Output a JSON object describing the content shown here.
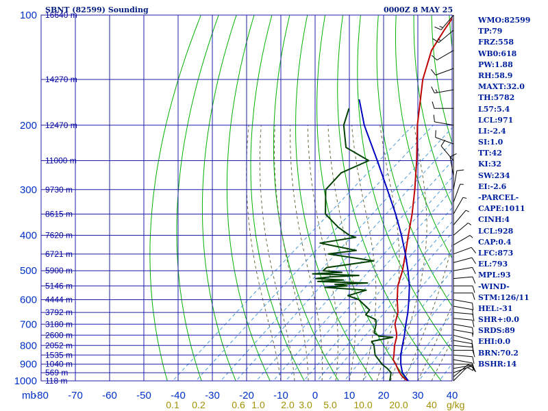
{
  "header": {
    "station": "SBNT (82599) Sounding",
    "datetime": "0000Z  8 MAY 25"
  },
  "indices": [
    "WMO:82599",
    "TP:79",
    "FRZ:558",
    "WB0:618",
    "PW:1.88",
    "RH:58.9",
    "MAXT:32.0",
    "TH:5782",
    "L57:5.4",
    "LCL:971",
    "LI:-2.4",
    "SI:1.0",
    "TT:42",
    "KI:32",
    "SW:234",
    "EI:-2.6",
    "-PARCEL-",
    "CAPE:1011",
    "CINH:4",
    "LCL:928",
    "CAP:0.4",
    "LFC:873",
    "EL:793",
    "MPL:93",
    "-WIND-",
    "STM:126/11",
    "HEL:-31",
    "SHR+:0.0",
    "SRDS:89",
    "EHI:0.0",
    "BRN:70.2",
    "BSHR:14"
  ],
  "colors": {
    "grid": "#1c1ca8",
    "dry_adiabat": "#00b000",
    "moist_adiabat": "#6a6a40",
    "mixing_ratio": "#4a9ad8",
    "temperature": "#c00000",
    "dewpoint": "#004000",
    "parcel": "#0000c0",
    "axis_text": "#0030c8",
    "mixing_text": "#a09000"
  },
  "chart_data": {
    "type": "line",
    "title": "SBNT (82599) Sounding",
    "xlabel": "",
    "ylabel": "",
    "pressure_unit_label": "mb",
    "mixing_ratio_unit_label": "g/kg",
    "xlim": [
      -80,
      40
    ],
    "ylim": [
      1000,
      100
    ],
    "temperature_ticks": [
      "-80",
      "-70",
      "-60",
      "-50",
      "-40",
      "-30",
      "-20",
      "-10",
      "0",
      "10",
      "20",
      "30",
      "40"
    ],
    "pressure_ticks": [
      {
        "p": 100,
        "label": "100"
      },
      {
        "p": 200,
        "label": "200"
      },
      {
        "p": 300,
        "label": "300"
      },
      {
        "p": 400,
        "label": "400"
      },
      {
        "p": 500,
        "label": "500"
      },
      {
        "p": 600,
        "label": "600"
      },
      {
        "p": 700,
        "label": "700"
      },
      {
        "p": 800,
        "label": "800"
      },
      {
        "p": 900,
        "label": "900"
      },
      {
        "p": 1000,
        "label": "1000"
      }
    ],
    "height_labels": [
      {
        "p": 100,
        "label": "16640 m"
      },
      {
        "p": 150,
        "label": "14270 m"
      },
      {
        "p": 200,
        "label": "12470 m"
      },
      {
        "p": 250,
        "label": "11000 m"
      },
      {
        "p": 300,
        "label": "9730 m"
      },
      {
        "p": 350,
        "label": "8615 m"
      },
      {
        "p": 400,
        "label": "7620 m"
      },
      {
        "p": 450,
        "label": "6721 m"
      },
      {
        "p": 500,
        "label": "5900 m"
      },
      {
        "p": 550,
        "label": "5146 m"
      },
      {
        "p": 600,
        "label": "4444 m"
      },
      {
        "p": 650,
        "label": "3792 m"
      },
      {
        "p": 700,
        "label": "3180 m"
      },
      {
        "p": 750,
        "label": "2600 m"
      },
      {
        "p": 800,
        "label": "2052 m"
      },
      {
        "p": 850,
        "label": "1535 m"
      },
      {
        "p": 900,
        "label": "1040 m"
      },
      {
        "p": 950,
        "label": "569 m"
      },
      {
        "p": 1000,
        "label": "118 m"
      }
    ],
    "mixing_ratio_labels": [
      "0.1",
      "0.2",
      "0.6",
      "1.0",
      "2.0",
      "3.0",
      "5.0",
      "10.0",
      "20.0",
      "40"
    ],
    "series": [
      {
        "key": "temperature",
        "points": [
          [
            1007,
            27.8
          ],
          [
            1000,
            27
          ],
          [
            975,
            24.2
          ],
          [
            950,
            22
          ],
          [
            925,
            20
          ],
          [
            900,
            18
          ],
          [
            875,
            15.8
          ],
          [
            850,
            14.5
          ],
          [
            800,
            11.5
          ],
          [
            760,
            9.4
          ],
          [
            740,
            8
          ],
          [
            700,
            4.6
          ],
          [
            650,
            1.6
          ],
          [
            600,
            -2.8
          ],
          [
            550,
            -7.2
          ],
          [
            500,
            -10.8
          ],
          [
            450,
            -15.5
          ],
          [
            400,
            -20.8
          ],
          [
            350,
            -26.7
          ],
          [
            300,
            -34
          ],
          [
            250,
            -43
          ],
          [
            200,
            -54.5
          ],
          [
            150,
            -68
          ],
          [
            125,
            -75
          ],
          [
            110,
            -78
          ],
          [
            100,
            -80
          ]
        ]
      },
      {
        "key": "dewpoint",
        "points": [
          [
            1007,
            22
          ],
          [
            1000,
            21.8
          ],
          [
            950,
            19.5
          ],
          [
            925,
            17
          ],
          [
            900,
            14
          ],
          [
            850,
            9
          ],
          [
            800,
            5.5
          ],
          [
            780,
            3.5
          ],
          [
            760,
            8.3
          ],
          [
            755,
            4
          ],
          [
            740,
            1.5
          ],
          [
            700,
            -0.9
          ],
          [
            680,
            -2.5
          ],
          [
            660,
            -7
          ],
          [
            640,
            -7.5
          ],
          [
            600,
            -14
          ],
          [
            585,
            -18.5
          ],
          [
            565,
            -15
          ],
          [
            555,
            -28
          ],
          [
            550,
            -22
          ],
          [
            545,
            -26
          ],
          [
            540,
            -17
          ],
          [
            535,
            -32
          ],
          [
            530,
            -25
          ],
          [
            525,
            -33.5
          ],
          [
            520,
            -30
          ],
          [
            515,
            -22
          ],
          [
            510,
            -36
          ],
          [
            505,
            -28
          ],
          [
            500,
            -34
          ],
          [
            490,
            -34
          ],
          [
            470,
            -22.5
          ],
          [
            460,
            -30
          ],
          [
            450,
            -38
          ],
          [
            440,
            -31
          ],
          [
            420,
            -44
          ],
          [
            405,
            -35.5
          ],
          [
            400,
            -38
          ],
          [
            380,
            -44
          ],
          [
            350,
            -52
          ],
          [
            300,
            -60
          ],
          [
            270,
            -61
          ],
          [
            250,
            -57
          ],
          [
            230,
            -68
          ],
          [
            200,
            -76
          ],
          [
            180,
            -80
          ]
        ]
      },
      {
        "key": "parcel",
        "points": [
          [
            1007,
            27.8
          ],
          [
            950,
            22.8
          ],
          [
            900,
            19.5
          ],
          [
            850,
            16.5
          ],
          [
            800,
            13.8
          ],
          [
            750,
            11
          ],
          [
            700,
            7.8
          ],
          [
            650,
            4.5
          ],
          [
            600,
            0.6
          ],
          [
            550,
            -3.8
          ],
          [
            500,
            -9.2
          ],
          [
            450,
            -15.5
          ],
          [
            400,
            -22.8
          ],
          [
            350,
            -31.5
          ],
          [
            300,
            -42
          ],
          [
            250,
            -54.5
          ],
          [
            200,
            -70
          ],
          [
            170,
            -80
          ]
        ]
      }
    ],
    "wind_barbs": [
      {
        "p": 1000,
        "dir": 45,
        "spd": 10
      },
      {
        "p": 975,
        "dir": 50,
        "spd": 10
      },
      {
        "p": 950,
        "dir": 70,
        "spd": 10
      },
      {
        "p": 925,
        "dir": 80,
        "spd": 10
      },
      {
        "p": 900,
        "dir": 90,
        "spd": 10
      },
      {
        "p": 875,
        "dir": 100,
        "spd": 10
      },
      {
        "p": 850,
        "dir": 95,
        "spd": 10
      },
      {
        "p": 825,
        "dir": 90,
        "spd": 10
      },
      {
        "p": 800,
        "dir": 95,
        "spd": 10
      },
      {
        "p": 775,
        "dir": 100,
        "spd": 10
      },
      {
        "p": 750,
        "dir": 105,
        "spd": 10
      },
      {
        "p": 725,
        "dir": 100,
        "spd": 5
      },
      {
        "p": 700,
        "dir": 100,
        "spd": 10
      },
      {
        "p": 675,
        "dir": 95,
        "spd": 10
      },
      {
        "p": 650,
        "dir": 95,
        "spd": 10
      },
      {
        "p": 625,
        "dir": 100,
        "spd": 10
      },
      {
        "p": 600,
        "dir": 100,
        "spd": 10
      },
      {
        "p": 575,
        "dir": 90,
        "spd": 10
      },
      {
        "p": 550,
        "dir": 90,
        "spd": 10
      },
      {
        "p": 525,
        "dir": 85,
        "spd": 10
      },
      {
        "p": 500,
        "dir": 80,
        "spd": 10
      },
      {
        "p": 475,
        "dir": 75,
        "spd": 10
      },
      {
        "p": 450,
        "dir": 70,
        "spd": 10
      },
      {
        "p": 425,
        "dir": 60,
        "spd": 5
      },
      {
        "p": 400,
        "dir": 50,
        "spd": 5
      },
      {
        "p": 375,
        "dir": 40,
        "spd": 5
      },
      {
        "p": 350,
        "dir": 30,
        "spd": 5
      },
      {
        "p": 325,
        "dir": 20,
        "spd": 5
      },
      {
        "p": 300,
        "dir": 10,
        "spd": 10
      },
      {
        "p": 275,
        "dir": 350,
        "spd": 10
      },
      {
        "p": 250,
        "dir": 320,
        "spd": 10
      },
      {
        "p": 225,
        "dir": 290,
        "spd": 10
      },
      {
        "p": 200,
        "dir": 280,
        "spd": 10
      },
      {
        "p": 180,
        "dir": 270,
        "spd": 10
      },
      {
        "p": 160,
        "dir": 260,
        "spd": 15
      },
      {
        "p": 140,
        "dir": 250,
        "spd": 10
      },
      {
        "p": 125,
        "dir": 240,
        "spd": 10
      },
      {
        "p": 110,
        "dir": 230,
        "spd": 15
      },
      {
        "p": 100,
        "dir": 220,
        "spd": 15
      }
    ]
  }
}
